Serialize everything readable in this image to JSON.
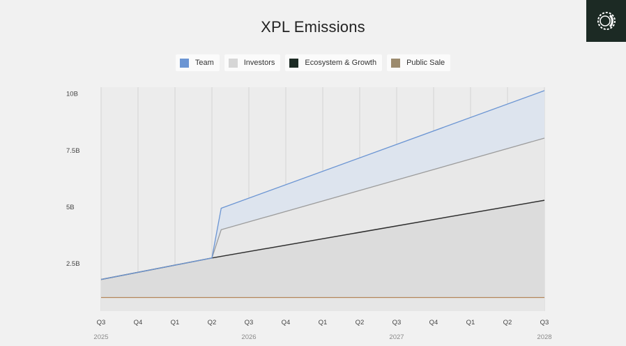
{
  "colors": {
    "team": "#6b95d3",
    "team_fill": "#dde4ee",
    "investors": "#9c9c9c",
    "investors_fill": "#e8e8e8",
    "ecosystem": "#2e2e2e",
    "ecosystem_fill": "#dcdcdc",
    "public_sale": "#b4865a",
    "public_fill": "#e6e6e6",
    "grid": "#d3d3d3",
    "logo_bg": "#1c2a24"
  },
  "logo": {
    "icon": "spiral-logo-icon"
  },
  "chart_data": {
    "type": "area",
    "title": "XPL Emissions",
    "stacked": true,
    "legend_position": "top-center",
    "grid": true,
    "x": [
      "Q3 2025",
      "Q4 2025",
      "Q1 2026",
      "Q2 2026",
      "Q3 2026",
      "Q4 2026",
      "Q1 2027",
      "Q2 2027",
      "Q3 2027",
      "Q4 2027",
      "Q1 2028",
      "Q2 2028",
      "Q3 2028"
    ],
    "x_tick_labels": [
      "Q3",
      "Q4",
      "Q1",
      "Q2",
      "Q3",
      "Q4",
      "Q1",
      "Q2",
      "Q3",
      "Q4",
      "Q1",
      "Q2",
      "Q3"
    ],
    "year_labels": [
      {
        "label": "2025",
        "at": "Q3 2025"
      },
      {
        "label": "2026",
        "at": "Q3 2026"
      },
      {
        "label": "2027",
        "at": "Q3 2027"
      },
      {
        "label": "2028",
        "at": "Q3 2028"
      }
    ],
    "y_ticks": [
      {
        "label": "2.5B",
        "value": 2.5
      },
      {
        "label": "5B",
        "value": 5
      },
      {
        "label": "7.5B",
        "value": 7.5
      },
      {
        "label": "10B",
        "value": 10
      }
    ],
    "ylim": [
      0.4,
      10.3
    ],
    "series": [
      {
        "name": "Public Sale",
        "key": "public_sale",
        "x": [
          0,
          12
        ],
        "y": [
          1.0,
          1.0
        ]
      },
      {
        "name": "Ecosystem & Growth",
        "key": "ecosystem",
        "x": [
          0,
          3,
          12
        ],
        "y": [
          1.8,
          2.75,
          5.3
        ]
      },
      {
        "name": "Investors",
        "key": "investors",
        "x": [
          0,
          3,
          3.25,
          12
        ],
        "y": [
          1.8,
          2.75,
          4.0,
          8.05
        ]
      },
      {
        "name": "Team",
        "key": "team",
        "x": [
          0,
          3,
          3.25,
          12
        ],
        "y": [
          1.8,
          2.75,
          4.95,
          10.15
        ]
      }
    ],
    "legend": [
      {
        "name": "Team",
        "key": "team"
      },
      {
        "name": "Investors",
        "key": "investors"
      },
      {
        "name": "Ecosystem & Growth",
        "key": "ecosystem"
      },
      {
        "name": "Public Sale",
        "key": "public_sale"
      }
    ]
  }
}
